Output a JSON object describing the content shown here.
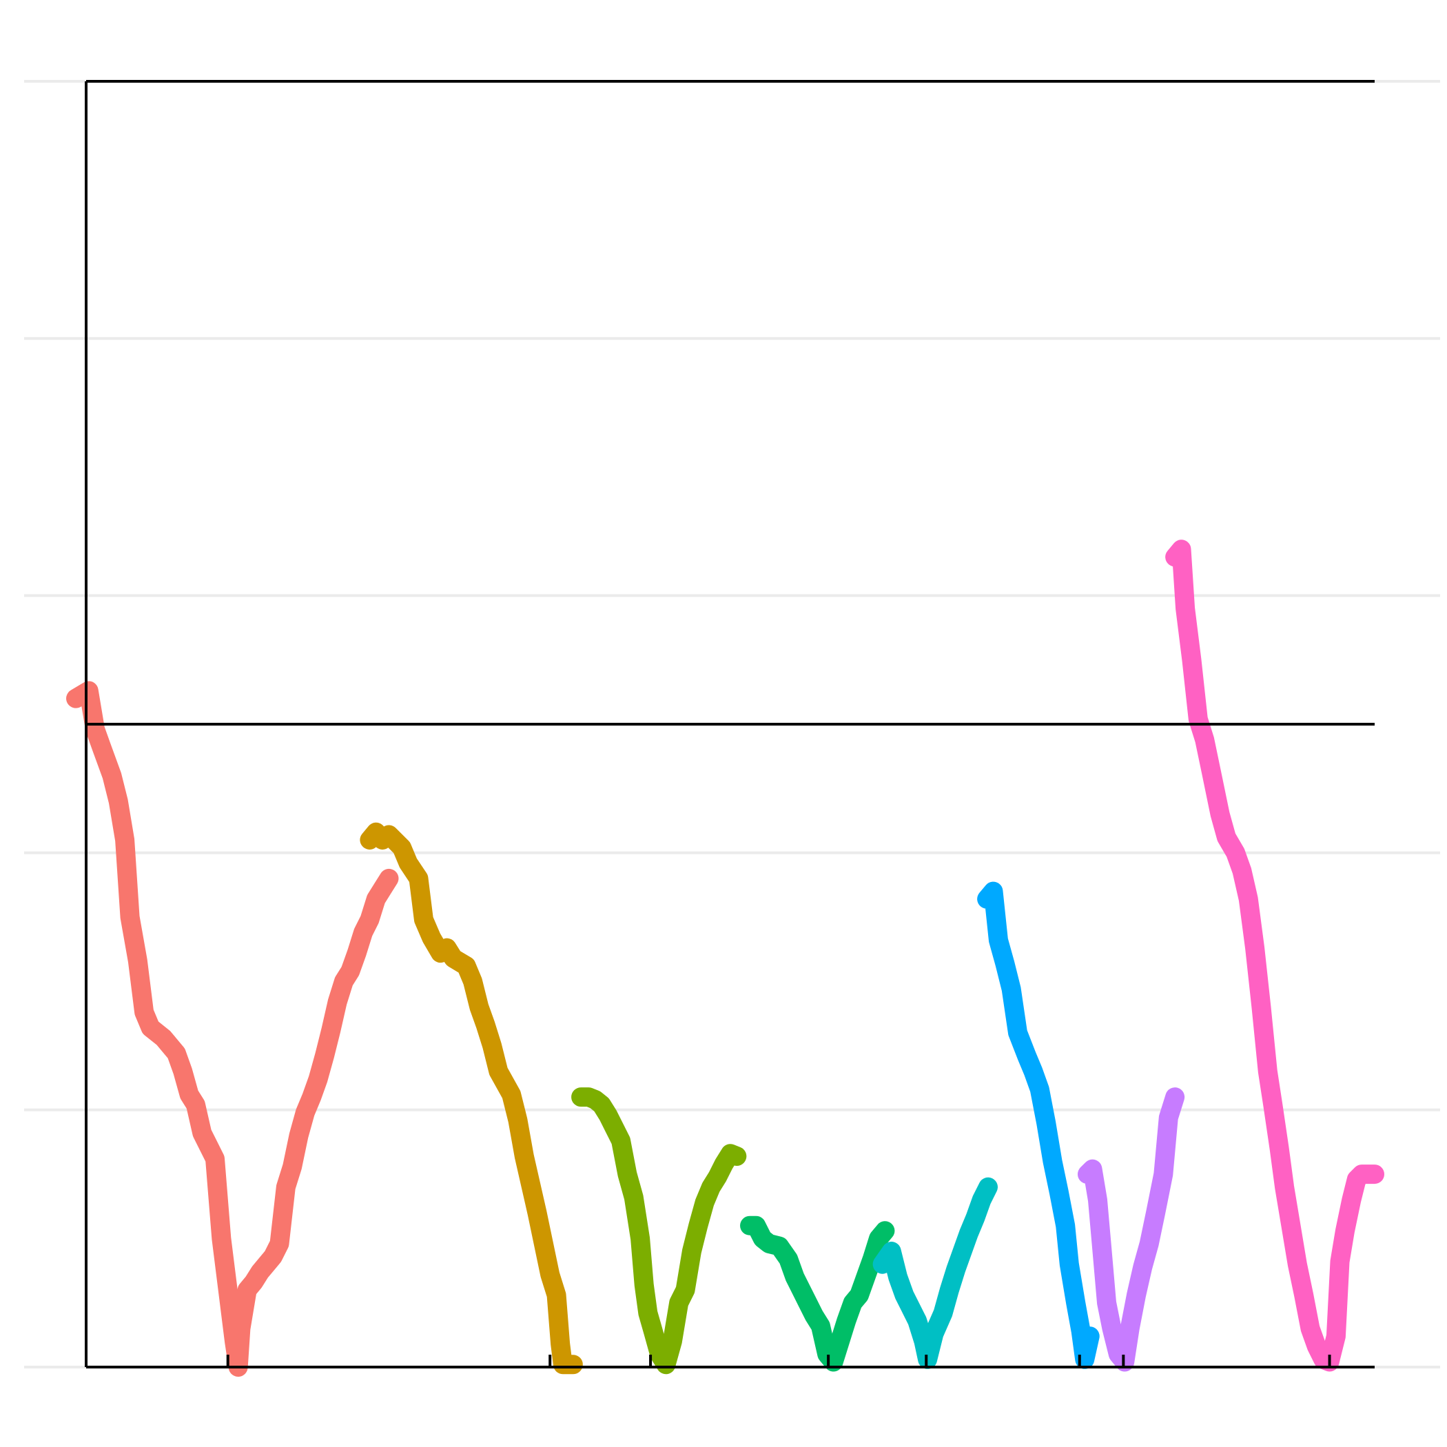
{
  "chart_data": {
    "type": "line",
    "title": "",
    "xlabel": "",
    "ylabel": "",
    "xlim": [
      0,
      100
    ],
    "ylim": [
      0,
      50
    ],
    "grid": {
      "horizontal": true,
      "vertical": false,
      "y_values": [
        0,
        10,
        20,
        30,
        40,
        50
      ]
    },
    "reference_line_y": 25,
    "tick_x": [
      11,
      36,
      43.8,
      57.6,
      65.2,
      77.1,
      80.5,
      96.5
    ],
    "legend": "none",
    "series": [
      {
        "color": "#F8766D",
        "points": [
          [
            -0.8,
            26
          ],
          [
            0.2,
            26.3
          ],
          [
            0.7,
            24.8
          ],
          [
            1.2,
            24.1
          ],
          [
            2,
            23
          ],
          [
            2.5,
            22
          ],
          [
            3,
            20.5
          ],
          [
            3.4,
            17.5
          ],
          [
            4,
            15.8
          ],
          [
            4.5,
            13.8
          ],
          [
            5,
            13.2
          ],
          [
            6,
            12.8
          ],
          [
            7,
            12.2
          ],
          [
            7.5,
            11.5
          ],
          [
            8,
            10.6
          ],
          [
            8.5,
            10.2
          ],
          [
            9,
            9.1
          ],
          [
            10,
            8.1
          ],
          [
            10.5,
            5
          ],
          [
            11,
            3
          ],
          [
            11.5,
            1
          ],
          [
            11.8,
            0
          ],
          [
            12,
            1.5
          ],
          [
            12.5,
            3
          ],
          [
            13,
            3.3
          ],
          [
            13.5,
            3.7
          ],
          [
            14,
            4
          ],
          [
            14.5,
            4.3
          ],
          [
            15,
            4.8
          ],
          [
            15.5,
            7
          ],
          [
            16,
            7.8
          ],
          [
            16.5,
            9
          ],
          [
            17,
            9.9
          ],
          [
            17.5,
            10.5
          ],
          [
            18,
            11.2
          ],
          [
            18.5,
            12.1
          ],
          [
            19,
            13.1
          ],
          [
            19.5,
            14.2
          ],
          [
            20,
            15
          ],
          [
            20.5,
            15.4
          ],
          [
            21,
            16.1
          ],
          [
            21.5,
            16.9
          ],
          [
            22,
            17.4
          ],
          [
            22.5,
            18.2
          ],
          [
            23,
            18.6
          ],
          [
            23.5,
            19
          ]
        ]
      },
      {
        "color": "#CD9600",
        "points": [
          [
            22,
            20.5
          ],
          [
            22.5,
            20.8
          ],
          [
            23,
            20.5
          ],
          [
            23.5,
            20.7
          ],
          [
            24.5,
            20.2
          ],
          [
            25,
            19.6
          ],
          [
            25.8,
            19
          ],
          [
            26.2,
            17.4
          ],
          [
            26.8,
            16.7
          ],
          [
            27.5,
            16.1
          ],
          [
            28,
            16.3
          ],
          [
            28.5,
            15.9
          ],
          [
            29.5,
            15.6
          ],
          [
            30,
            15
          ],
          [
            30.5,
            14
          ],
          [
            31,
            13.3
          ],
          [
            31.5,
            12.5
          ],
          [
            32,
            11.5
          ],
          [
            33,
            10.6
          ],
          [
            33.5,
            9.6
          ],
          [
            34,
            8.2
          ],
          [
            34.5,
            7.1
          ],
          [
            35,
            6
          ],
          [
            35.5,
            4.8
          ],
          [
            36,
            3.6
          ],
          [
            36.5,
            2.8
          ],
          [
            36.8,
            0.9
          ],
          [
            37,
            0.1
          ],
          [
            37.8,
            0.1
          ]
        ]
      },
      {
        "color": "#7CAE00",
        "points": [
          [
            38.4,
            10.5
          ],
          [
            39,
            10.5
          ],
          [
            39.5,
            10.4
          ],
          [
            40,
            10.2
          ],
          [
            40.5,
            9.8
          ],
          [
            41,
            9.3
          ],
          [
            41.5,
            8.8
          ],
          [
            42,
            7.5
          ],
          [
            42.5,
            6.6
          ],
          [
            43,
            5
          ],
          [
            43.3,
            3.2
          ],
          [
            43.6,
            2.1
          ],
          [
            44,
            1.4
          ],
          [
            44.5,
            0.5
          ],
          [
            45,
            0.1
          ],
          [
            45.5,
            1
          ],
          [
            46,
            2.5
          ],
          [
            46.5,
            3
          ],
          [
            47,
            4.5
          ],
          [
            47.5,
            5.5
          ],
          [
            48,
            6.4
          ],
          [
            48.5,
            7
          ],
          [
            49,
            7.4
          ],
          [
            49.5,
            7.9
          ],
          [
            50,
            8.3
          ],
          [
            50.5,
            8.2
          ]
        ]
      },
      {
        "color": "#00BE67",
        "points": [
          [
            51.5,
            5.5
          ],
          [
            52,
            5.5
          ],
          [
            52.5,
            5
          ],
          [
            53,
            4.8
          ],
          [
            53.8,
            4.7
          ],
          [
            54.5,
            4.2
          ],
          [
            55,
            3.5
          ],
          [
            55.5,
            3
          ],
          [
            56,
            2.5
          ],
          [
            56.5,
            2
          ],
          [
            57,
            1.6
          ],
          [
            57.5,
            0.5
          ],
          [
            58,
            0.2
          ],
          [
            58.5,
            1
          ],
          [
            59,
            1.8
          ],
          [
            59.5,
            2.5
          ],
          [
            60,
            2.8
          ],
          [
            60.5,
            3.5
          ],
          [
            61,
            4.2
          ],
          [
            61.5,
            5
          ],
          [
            62,
            5.3
          ]
        ]
      },
      {
        "color": "#00BFC4",
        "points": [
          [
            61.8,
            4
          ],
          [
            62.5,
            4.5
          ],
          [
            63,
            3.5
          ],
          [
            63.5,
            2.8
          ],
          [
            64,
            2.3
          ],
          [
            64.5,
            1.8
          ],
          [
            65,
            1
          ],
          [
            65.3,
            0.3
          ],
          [
            65.8,
            1.3
          ],
          [
            66.5,
            2.1
          ],
          [
            67,
            3
          ],
          [
            67.5,
            3.8
          ],
          [
            68,
            4.5
          ],
          [
            68.5,
            5.2
          ],
          [
            69,
            5.8
          ],
          [
            69.5,
            6.5
          ],
          [
            70,
            7
          ]
        ]
      },
      {
        "color": "#00A9FF",
        "points": [
          [
            69.9,
            18.2
          ],
          [
            70.4,
            18.5
          ],
          [
            70.8,
            16.6
          ],
          [
            71.3,
            15.7
          ],
          [
            71.8,
            14.7
          ],
          [
            72.3,
            13
          ],
          [
            73,
            12.1
          ],
          [
            73.5,
            11.5
          ],
          [
            74,
            10.8
          ],
          [
            74.5,
            9.5
          ],
          [
            75,
            8
          ],
          [
            75.5,
            6.8
          ],
          [
            76,
            5.5
          ],
          [
            76.3,
            4
          ],
          [
            76.8,
            2.5
          ],
          [
            77.2,
            1.4
          ],
          [
            77.5,
            0.3
          ],
          [
            77.9,
            1.2
          ]
        ]
      },
      {
        "color": "#C77CFF",
        "points": [
          [
            77.7,
            7.5
          ],
          [
            78.1,
            7.7
          ],
          [
            78.5,
            6.5
          ],
          [
            78.8,
            4.8
          ],
          [
            79.2,
            2.5
          ],
          [
            79.6,
            1.5
          ],
          [
            80.1,
            0.5
          ],
          [
            80.6,
            0.2
          ],
          [
            81,
            1.5
          ],
          [
            81.5,
            2.8
          ],
          [
            82,
            3.9
          ],
          [
            82.5,
            4.8
          ],
          [
            83,
            6
          ],
          [
            83.6,
            7.5
          ],
          [
            84,
            9.7
          ],
          [
            84.5,
            10.5
          ]
        ]
      },
      {
        "color": "#FF61C3",
        "points": [
          [
            84.5,
            31.5
          ],
          [
            85,
            31.8
          ],
          [
            85.3,
            29.5
          ],
          [
            85.8,
            27.5
          ],
          [
            86.3,
            25.2
          ],
          [
            86.8,
            24.4
          ],
          [
            87.3,
            23.2
          ],
          [
            88,
            21.5
          ],
          [
            88.5,
            20.6
          ],
          [
            89.2,
            20
          ],
          [
            89.7,
            19.3
          ],
          [
            90.2,
            18.2
          ],
          [
            90.7,
            16.3
          ],
          [
            91.2,
            14
          ],
          [
            91.7,
            11.5
          ],
          [
            92.1,
            10.2
          ],
          [
            92.6,
            8.5
          ],
          [
            93,
            7
          ],
          [
            93.5,
            5.5
          ],
          [
            94,
            4
          ],
          [
            94.5,
            2.8
          ],
          [
            95,
            1.5
          ],
          [
            95.5,
            0.8
          ],
          [
            96,
            0.3
          ],
          [
            96.5,
            0.2
          ],
          [
            97,
            1.2
          ],
          [
            97.3,
            4.1
          ],
          [
            97.7,
            5.3
          ],
          [
            98.2,
            6.5
          ],
          [
            98.6,
            7.3
          ],
          [
            99,
            7.5
          ],
          [
            100,
            7.5
          ]
        ]
      }
    ]
  }
}
